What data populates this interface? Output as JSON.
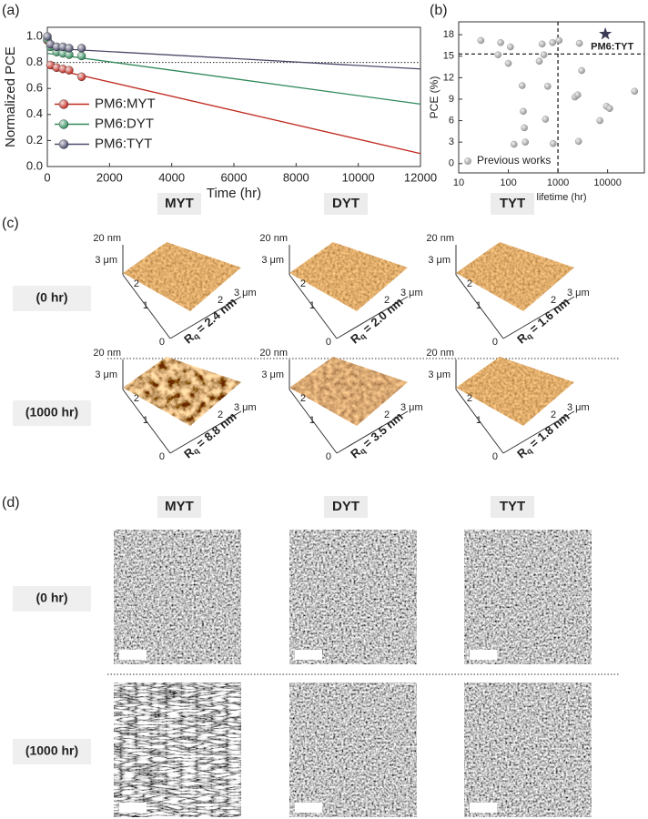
{
  "panels": {
    "a": "(a)",
    "b": "(b)",
    "c": "(c)",
    "d": "(d)"
  },
  "chart_data": [
    {
      "type": "line",
      "ylabel": "Normalized PCE",
      "xlabel": "Time (hr)",
      "xlim": [
        0,
        12000
      ],
      "xticks": [
        0,
        2000,
        4000,
        6000,
        8000,
        10000,
        12000
      ],
      "ylim": [
        0,
        1.07
      ],
      "yticks": [
        {
          "value": 0,
          "label": "0.0"
        },
        0.2,
        0.4,
        0.6,
        0.8,
        {
          "value": 1,
          "label": "1.0"
        }
      ],
      "reference_line": 0.8,
      "legend": "center left",
      "series": [
        {
          "name": "PM6:MYT",
          "color": "#c0281e",
          "x": [
            0,
            100,
            300,
            500,
            700,
            1100
          ],
          "values": [
            0.97,
            0.78,
            0.76,
            0.75,
            0.74,
            0.69
          ],
          "fit": {
            "x": [
              0,
              12000
            ],
            "values": [
              0.76,
              0.1
            ]
          }
        },
        {
          "name": "PM6:DYT",
          "color": "#2f8a5a",
          "x": [
            0,
            100,
            300,
            500,
            700,
            1100
          ],
          "values": [
            0.98,
            0.92,
            0.88,
            0.87,
            0.86,
            0.85
          ],
          "fit": {
            "x": [
              0,
              12000
            ],
            "values": [
              0.87,
              0.48
            ]
          }
        },
        {
          "name": "PM6:TYT",
          "color": "#4a4a6a",
          "x": [
            0,
            100,
            300,
            500,
            700,
            1100
          ],
          "values": [
            1.0,
            0.94,
            0.92,
            0.92,
            0.91,
            0.91
          ],
          "fit": {
            "x": [
              0,
              12000
            ],
            "values": [
              0.91,
              0.75
            ]
          }
        }
      ]
    },
    {
      "type": "scatter",
      "xlabel": {
        "symbol": "t",
        "subscript": "80%",
        "text": "lifetime (hr)"
      },
      "ylabel": "PCE (%)",
      "xscale": "log",
      "xlim": [
        10,
        55000
      ],
      "xticks": [
        10,
        100,
        1000,
        10000
      ],
      "ylim": [
        -1.3,
        19.8
      ],
      "yticks": [
        0,
        3,
        6,
        9,
        12,
        15,
        18
      ],
      "dashed_lines": {
        "x": 1000,
        "y": 15.3
      },
      "legend": "lower left",
      "series": [
        {
          "name": "Previous works",
          "color": "#9a9a9a",
          "marker": "circle",
          "x": [
            28,
            62,
            70,
            110,
            100,
            130,
            190,
            200,
            210,
            220,
            420,
            480,
            520,
            560,
            620,
            780,
            800,
            1050,
            2200,
            2500,
            2700,
            3000,
            2600,
            7000,
            9500,
            11000,
            35000
          ],
          "values": [
            17.2,
            15.2,
            16.9,
            16.3,
            14.0,
            2.7,
            10.9,
            7.3,
            5.0,
            3.0,
            14.3,
            16.7,
            15.2,
            6.2,
            10.8,
            16.9,
            2.8,
            17.2,
            9.3,
            9.6,
            16.8,
            13.0,
            3.1,
            6.0,
            8.0,
            7.7,
            10.1
          ]
        },
        {
          "name": "PM6:TYT",
          "color": "#3b3b55",
          "marker": "star",
          "x": [
            9000
          ],
          "values": [
            18.1
          ]
        }
      ]
    }
  ],
  "sample_colors": [
    "#9b1c1c",
    "#2d6a2d",
    "#6b2a45"
  ],
  "afm": {
    "headers": [
      "MYT",
      "DYT",
      "TYT"
    ],
    "rows": [
      "(0 hr)",
      "(1000 hr)"
    ],
    "height_label": "20 nm",
    "y_axis_labels": [
      "3 μm",
      "2",
      "1",
      "0"
    ],
    "x_axis_labels": [
      "2",
      "3 μm"
    ],
    "roughness_symbol": "R",
    "roughness_subscript": "q",
    "roughness": [
      [
        "= 2.4 nm",
        "= 2.0 nm",
        "= 1.6 nm"
      ],
      [
        "= 8.8 nm",
        "= 3.5 nm",
        "= 1.8 nm"
      ]
    ]
  },
  "tem": {
    "headers": [
      "MYT",
      "DYT",
      "TYT"
    ],
    "rows": [
      "(0 hr)",
      "(1000 hr)"
    ]
  }
}
